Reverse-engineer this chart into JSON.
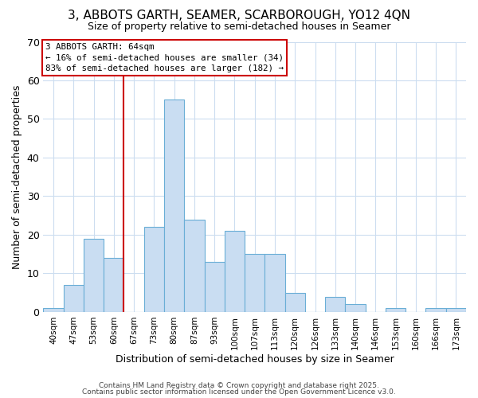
{
  "title": "3, ABBOTS GARTH, SEAMER, SCARBOROUGH, YO12 4QN",
  "subtitle": "Size of property relative to semi-detached houses in Seamer",
  "xlabel": "Distribution of semi-detached houses by size in Seamer",
  "ylabel": "Number of semi-detached properties",
  "bar_labels": [
    "40sqm",
    "47sqm",
    "53sqm",
    "60sqm",
    "67sqm",
    "73sqm",
    "80sqm",
    "87sqm",
    "93sqm",
    "100sqm",
    "107sqm",
    "113sqm",
    "120sqm",
    "126sqm",
    "133sqm",
    "140sqm",
    "146sqm",
    "153sqm",
    "160sqm",
    "166sqm",
    "173sqm"
  ],
  "bar_values": [
    1,
    7,
    19,
    14,
    0,
    22,
    55,
    24,
    13,
    21,
    15,
    15,
    5,
    0,
    4,
    2,
    0,
    1,
    0,
    1,
    1
  ],
  "bar_color": "#c9ddf2",
  "bar_edge_color": "#6aaed6",
  "vline_color": "#cc0000",
  "annotation_title": "3 ABBOTS GARTH: 64sqm",
  "annotation_line1": "← 16% of semi-detached houses are smaller (34)",
  "annotation_line2": "83% of semi-detached houses are larger (182) →",
  "annotation_box_edgecolor": "#cc0000",
  "ylim": [
    0,
    70
  ],
  "yticks": [
    0,
    10,
    20,
    30,
    40,
    50,
    60,
    70
  ],
  "footer1": "Contains HM Land Registry data © Crown copyright and database right 2025.",
  "footer2": "Contains public sector information licensed under the Open Government Licence v3.0.",
  "background_color": "#ffffff",
  "grid_color": "#ccddf0"
}
